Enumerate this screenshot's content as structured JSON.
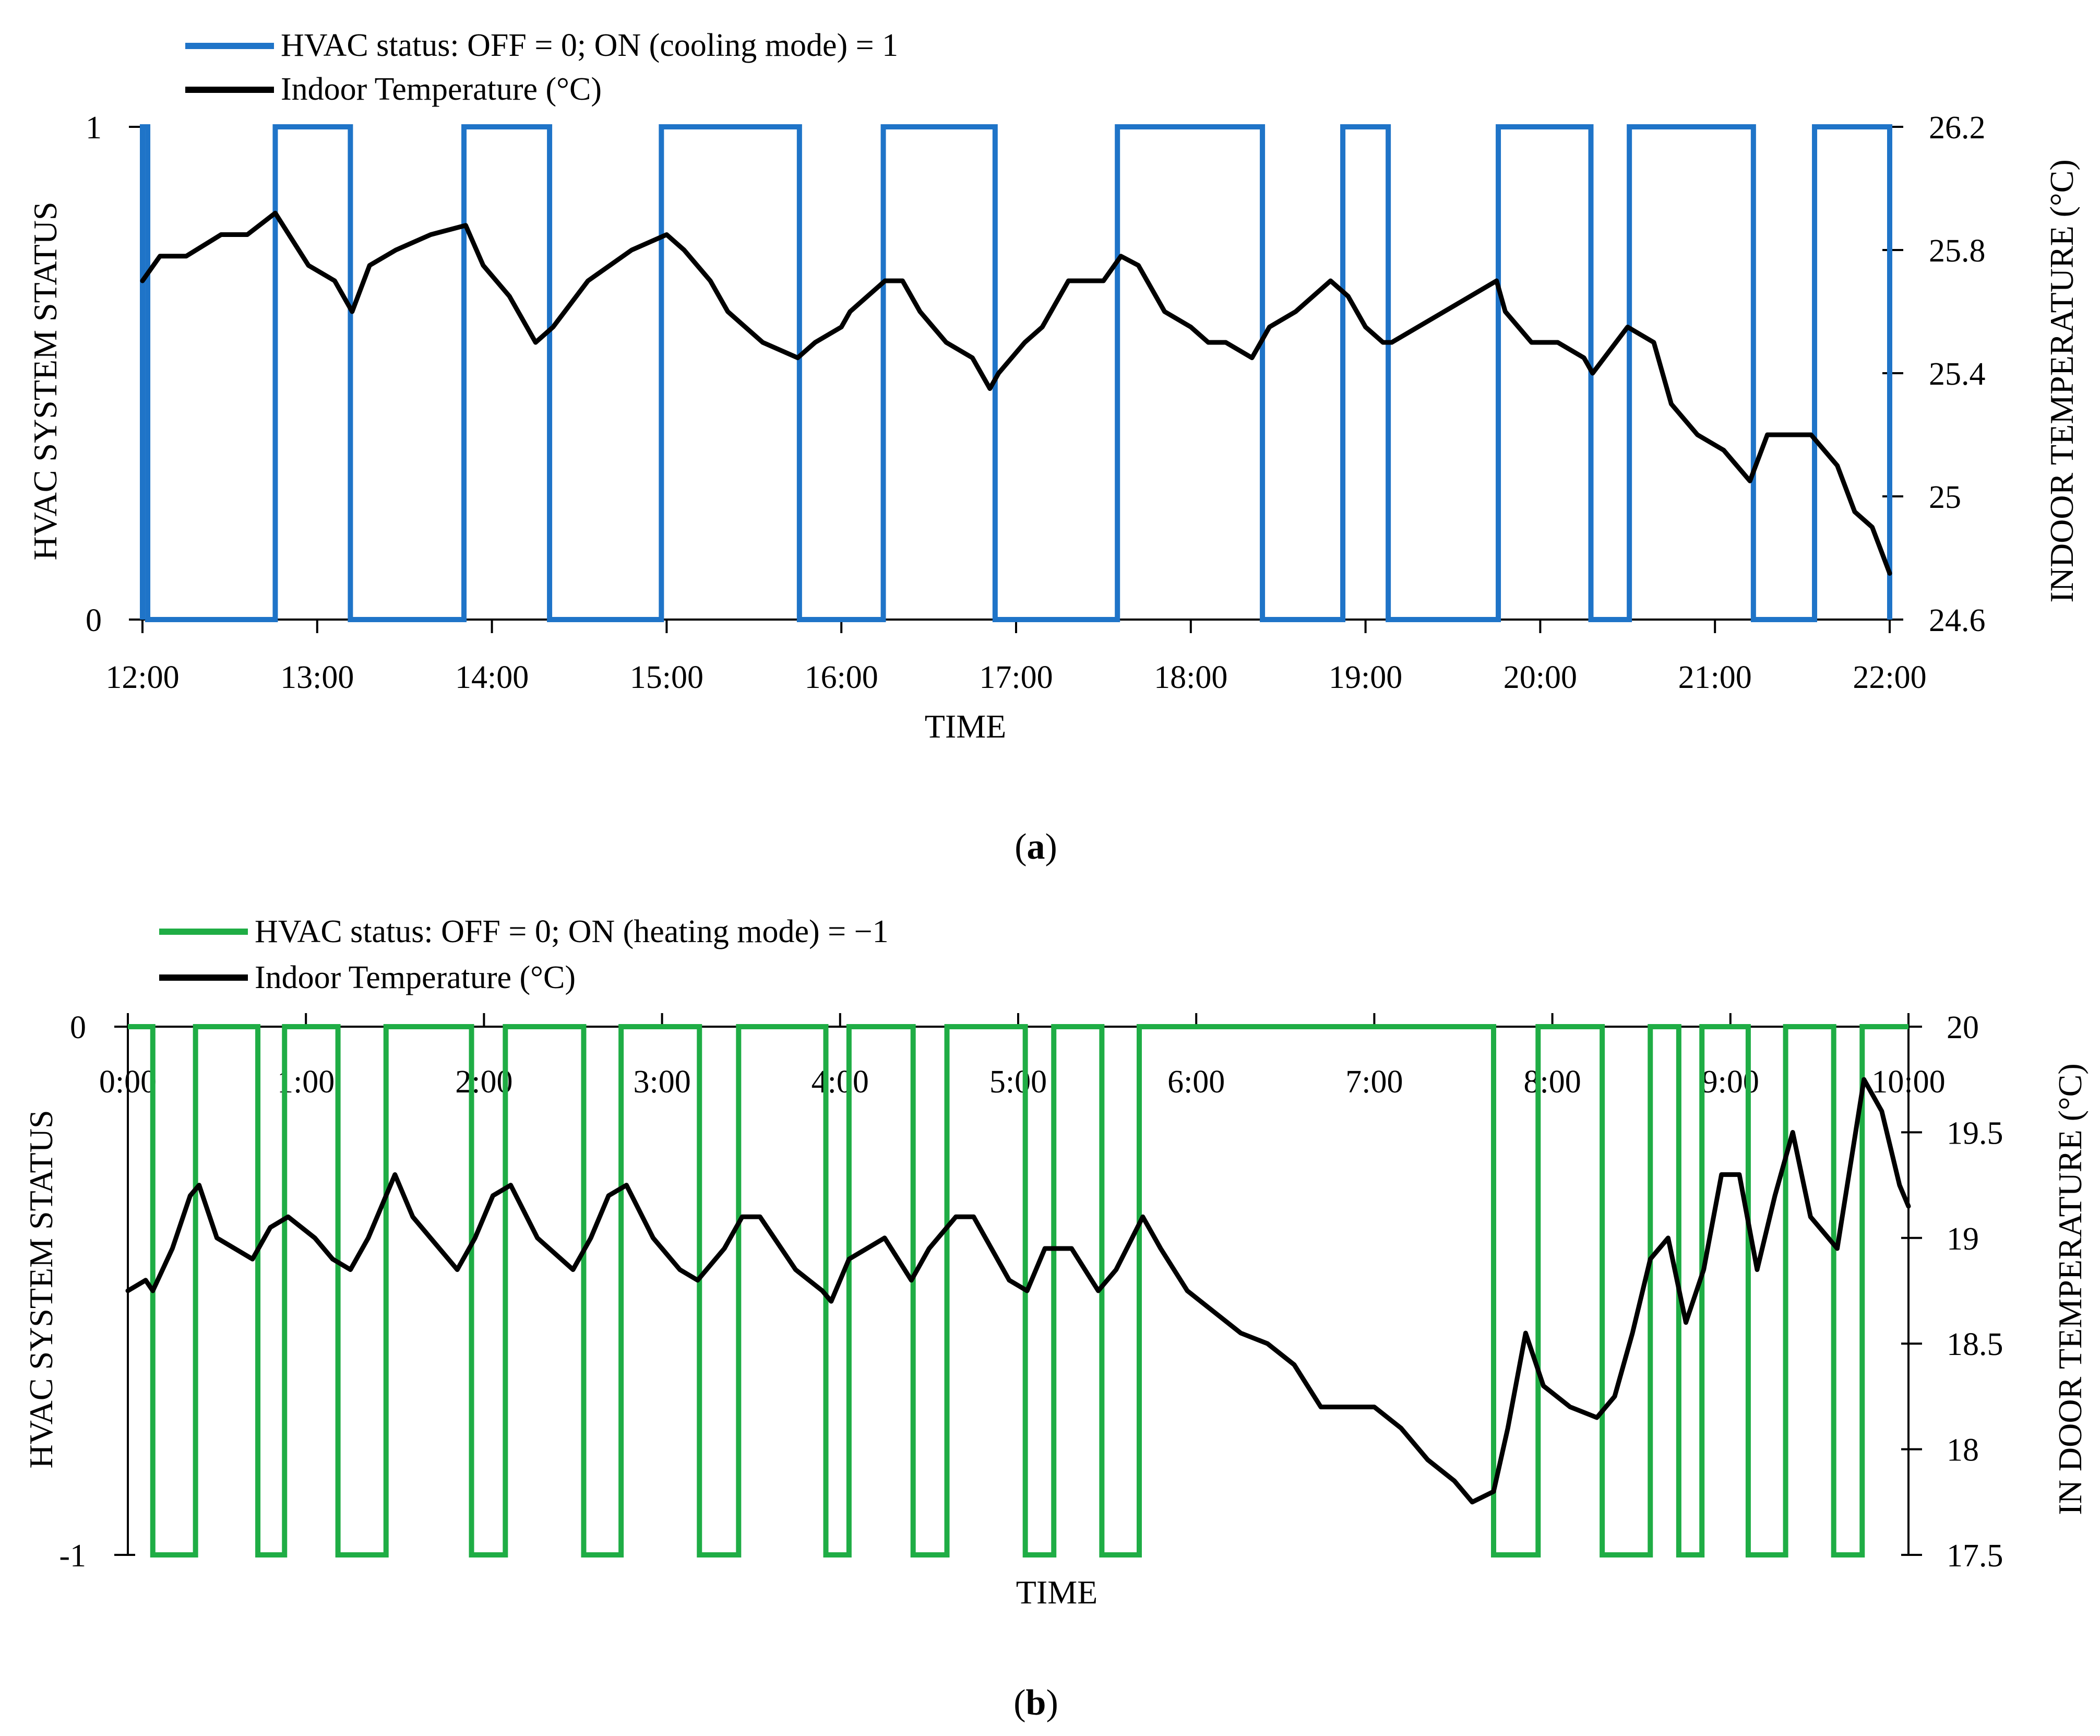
{
  "chart_data": [
    {
      "panel_label": "a",
      "type": "line",
      "xlabel": "TIME",
      "ylabel_left": "HVAC SYSTEM STATUS",
      "ylabel_right": "INDOOR TEMPERATURE (°C)",
      "x_range_hours": [
        12,
        22
      ],
      "x_ticks": [
        "12:00",
        "13:00",
        "14:00",
        "15:00",
        "16:00",
        "17:00",
        "18:00",
        "19:00",
        "20:00",
        "21:00",
        "22:00"
      ],
      "y_left_range": [
        0,
        1
      ],
      "y_left_ticks": [
        "0",
        "1"
      ],
      "y_right_range": [
        24.6,
        26.2
      ],
      "y_right_ticks": [
        "24.6",
        "25",
        "25.4",
        "25.8",
        "26.2"
      ],
      "legend": [
        "HVAC status: OFF = 0; ON (cooling mode) = 1",
        "Indoor Temperature (°C)"
      ],
      "series": [
        {
          "name": "HVAC status: OFF = 0; ON (cooling mode) = 1",
          "color": "#1f74c8",
          "axis": "left",
          "on_value": 1,
          "on_intervals": [
            [
              12.0,
              12.03
            ],
            [
              12.76,
              13.19
            ],
            [
              13.84,
              14.33
            ],
            [
              14.97,
              15.76
            ],
            [
              16.24,
              16.88
            ],
            [
              17.58,
              18.41
            ],
            [
              18.87,
              19.13
            ],
            [
              19.76,
              20.29
            ],
            [
              20.51,
              21.22
            ],
            [
              21.57,
              22.0
            ]
          ]
        },
        {
          "name": "Indoor Temperature (°C)",
          "color": "#000000",
          "axis": "right",
          "x": [
            12.0,
            12.1,
            12.25,
            12.45,
            12.6,
            12.76,
            12.95,
            13.1,
            13.2,
            13.3,
            13.45,
            13.65,
            13.85,
            13.95,
            14.1,
            14.25,
            14.35,
            14.55,
            14.8,
            15.0,
            15.1,
            15.25,
            15.35,
            15.55,
            15.75,
            15.85,
            16.0,
            16.05,
            16.25,
            16.35,
            16.45,
            16.6,
            16.75,
            16.85,
            16.9,
            17.05,
            17.15,
            17.3,
            17.5,
            17.6,
            17.7,
            17.85,
            18.0,
            18.1,
            18.2,
            18.35,
            18.45,
            18.6,
            18.8,
            18.9,
            19.0,
            19.1,
            19.15,
            19.3,
            19.45,
            19.6,
            19.75,
            19.8,
            19.95,
            20.1,
            20.25,
            20.3,
            20.5,
            20.65,
            20.75,
            20.9,
            21.05,
            21.2,
            21.3,
            21.55,
            21.7,
            21.8,
            21.9,
            22.0
          ],
          "y": [
            25.7,
            25.78,
            25.78,
            25.85,
            25.85,
            25.92,
            25.75,
            25.7,
            25.6,
            25.75,
            25.8,
            25.85,
            25.88,
            25.75,
            25.65,
            25.5,
            25.55,
            25.7,
            25.8,
            25.85,
            25.8,
            25.7,
            25.6,
            25.5,
            25.45,
            25.5,
            25.55,
            25.6,
            25.7,
            25.7,
            25.6,
            25.5,
            25.45,
            25.35,
            25.4,
            25.5,
            25.55,
            25.7,
            25.7,
            25.78,
            25.75,
            25.6,
            25.55,
            25.5,
            25.5,
            25.45,
            25.55,
            25.6,
            25.7,
            25.65,
            25.55,
            25.5,
            25.5,
            25.55,
            25.6,
            25.65,
            25.7,
            25.6,
            25.5,
            25.5,
            25.45,
            25.4,
            25.55,
            25.5,
            25.3,
            25.2,
            25.15,
            25.05,
            25.2,
            25.2,
            25.1,
            24.95,
            24.9,
            24.75
          ]
        }
      ]
    },
    {
      "panel_label": "b",
      "type": "line",
      "xlabel": "TIME",
      "ylabel_left": "HVAC SYSTEM STATUS",
      "ylabel_right": "IN DOOR TEMPERATURE (°C)",
      "x_range_hours": [
        0,
        10
      ],
      "x_ticks": [
        "0:00",
        "1:00",
        "2:00",
        "3:00",
        "4:00",
        "5:00",
        "6:00",
        "7:00",
        "8:00",
        "9:00",
        "10:00"
      ],
      "y_left_range": [
        -1,
        0
      ],
      "y_left_ticks": [
        "-1",
        "0"
      ],
      "y_right_range": [
        17.5,
        20
      ],
      "y_right_ticks": [
        "17.5",
        "18",
        "18.5",
        "19",
        "19.5",
        "20"
      ],
      "legend": [
        "HVAC status: OFF = 0; ON (heating mode) = −1",
        "Indoor Temperature (°C)"
      ],
      "series": [
        {
          "name": "HVAC status: OFF = 0; ON (heating mode) = −1",
          "color": "#1fad45",
          "axis": "left",
          "on_value": -1,
          "on_intervals": [
            [
              0.14,
              0.38
            ],
            [
              0.73,
              0.88
            ],
            [
              1.18,
              1.45
            ],
            [
              1.93,
              2.12
            ],
            [
              2.56,
              2.77
            ],
            [
              3.21,
              3.43
            ],
            [
              3.92,
              4.05
            ],
            [
              4.41,
              4.6
            ],
            [
              5.04,
              5.2
            ],
            [
              5.47,
              5.68
            ],
            [
              7.67,
              7.92
            ],
            [
              8.28,
              8.55
            ],
            [
              8.71,
              8.84
            ],
            [
              9.1,
              9.31
            ],
            [
              9.58,
              9.74
            ]
          ]
        },
        {
          "name": "Indoor Temperature (°C)",
          "color": "#000000",
          "axis": "right",
          "x": [
            0.0,
            0.1,
            0.14,
            0.25,
            0.35,
            0.4,
            0.5,
            0.6,
            0.7,
            0.8,
            0.9,
            1.05,
            1.15,
            1.25,
            1.35,
            1.5,
            1.6,
            1.7,
            1.85,
            1.95,
            2.05,
            2.15,
            2.3,
            2.5,
            2.6,
            2.7,
            2.8,
            2.95,
            3.1,
            3.2,
            3.35,
            3.45,
            3.55,
            3.75,
            3.9,
            3.95,
            4.05,
            4.25,
            4.4,
            4.5,
            4.65,
            4.75,
            4.95,
            5.05,
            5.15,
            5.3,
            5.45,
            5.55,
            5.7,
            5.8,
            5.95,
            6.1,
            6.25,
            6.4,
            6.55,
            6.7,
            6.85,
            7.0,
            7.15,
            7.3,
            7.45,
            7.55,
            7.67,
            7.75,
            7.85,
            7.95,
            8.1,
            8.25,
            8.35,
            8.45,
            8.55,
            8.65,
            8.75,
            8.85,
            8.95,
            9.05,
            9.15,
            9.25,
            9.35,
            9.45,
            9.6,
            9.75,
            9.85,
            9.95,
            10.0
          ],
          "y": [
            18.75,
            18.8,
            18.75,
            18.95,
            19.2,
            19.25,
            19.0,
            18.95,
            18.9,
            19.05,
            19.1,
            19.0,
            18.9,
            18.85,
            19.0,
            19.3,
            19.1,
            19.0,
            18.85,
            19.0,
            19.2,
            19.25,
            19.0,
            18.85,
            19.0,
            19.2,
            19.25,
            19.0,
            18.85,
            18.8,
            18.95,
            19.1,
            19.1,
            18.85,
            18.75,
            18.7,
            18.9,
            19.0,
            18.8,
            18.95,
            19.1,
            19.1,
            18.8,
            18.75,
            18.95,
            18.95,
            18.75,
            18.85,
            19.1,
            18.95,
            18.75,
            18.65,
            18.55,
            18.5,
            18.4,
            18.2,
            18.2,
            18.2,
            18.1,
            17.95,
            17.85,
            17.75,
            17.8,
            18.1,
            18.55,
            18.3,
            18.2,
            18.15,
            18.25,
            18.55,
            18.9,
            19.0,
            18.6,
            18.85,
            19.3,
            19.3,
            18.85,
            19.2,
            19.5,
            19.1,
            18.95,
            19.75,
            19.6,
            19.25,
            19.15
          ]
        }
      ]
    }
  ]
}
